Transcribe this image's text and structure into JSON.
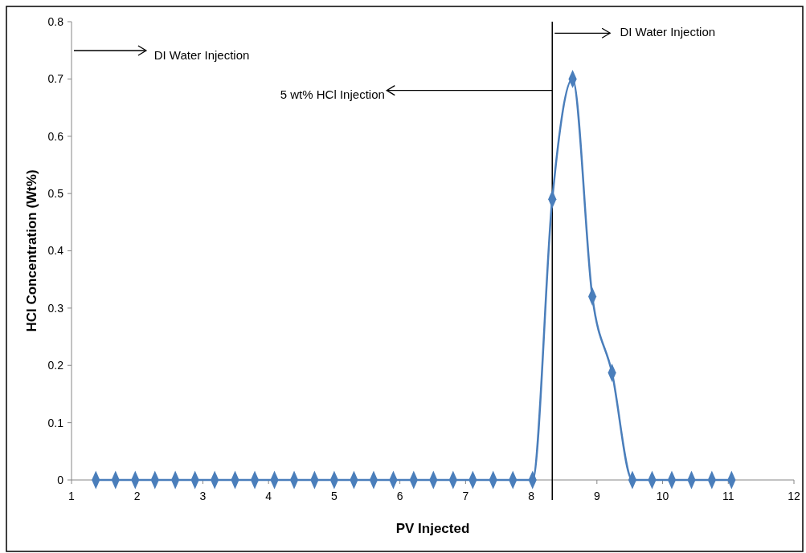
{
  "chart_data": {
    "type": "line",
    "xlabel": "PV Injected",
    "ylabel": "HCl Concentration (Wt%)",
    "x": [
      1.37,
      1.67,
      1.97,
      2.27,
      2.58,
      2.88,
      3.18,
      3.49,
      3.79,
      4.09,
      4.39,
      4.7,
      5.0,
      5.3,
      5.6,
      5.9,
      6.21,
      6.51,
      6.81,
      7.11,
      7.42,
      7.72,
      8.02,
      8.32,
      8.63,
      8.93,
      9.23,
      9.54,
      9.84,
      10.14,
      10.44,
      10.75,
      11.05
    ],
    "series": [
      {
        "color": "#4a7ebb",
        "values": [
          0,
          0,
          0,
          0,
          0,
          0,
          0,
          0,
          0,
          0,
          0,
          0,
          0,
          0,
          0,
          0,
          0,
          0,
          0,
          0,
          0,
          0,
          0,
          0.49,
          0.7,
          0.32,
          0.187,
          0,
          0,
          0,
          0,
          0,
          0
        ]
      }
    ],
    "xlim": [
      1,
      12
    ],
    "xticks": [
      1,
      2,
      3,
      4,
      5,
      6,
      7,
      8,
      9,
      10,
      11,
      12
    ],
    "ylim": [
      0,
      0.8
    ],
    "yticks": [
      0,
      0.1,
      0.2,
      0.3,
      0.4,
      0.5,
      0.6,
      0.7,
      0.8
    ],
    "marker": "diamond",
    "line_style": "solid",
    "grid": false,
    "ref_lines": [
      {
        "axis": "x",
        "value": 8.32,
        "color": "#000000"
      }
    ],
    "annotations": [
      "DI Water Injection",
      {
        "text": "5 wt% HCl Injection",
        "x": 8.32,
        "y": 0.68
      },
      {
        "text": "DI Water Injection",
        "x": 8.32,
        "y": 0.78
      }
    ]
  }
}
